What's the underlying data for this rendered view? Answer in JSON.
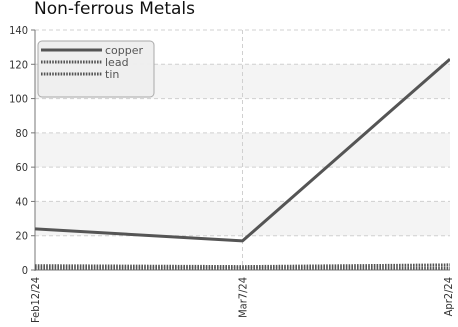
{
  "chart_data": {
    "type": "line",
    "title": "Non-ferrous Metals",
    "x": [
      "Feb12/24",
      "Mar7/24",
      "Apr2/24"
    ],
    "ylim": [
      0,
      140
    ],
    "yticks": [
      0,
      20,
      40,
      60,
      80,
      100,
      120,
      140
    ],
    "grid": true,
    "legend_position": "top-left",
    "series": [
      {
        "name": "copper",
        "values": [
          24,
          17,
          123
        ],
        "color": "#555555",
        "style": "solid"
      },
      {
        "name": "lead",
        "values": [
          2.5,
          2,
          3
        ],
        "color": "#555555",
        "style": "dotted"
      },
      {
        "name": "tin",
        "values": [
          1,
          1,
          1
        ],
        "color": "#555555",
        "style": "dotted"
      }
    ]
  }
}
